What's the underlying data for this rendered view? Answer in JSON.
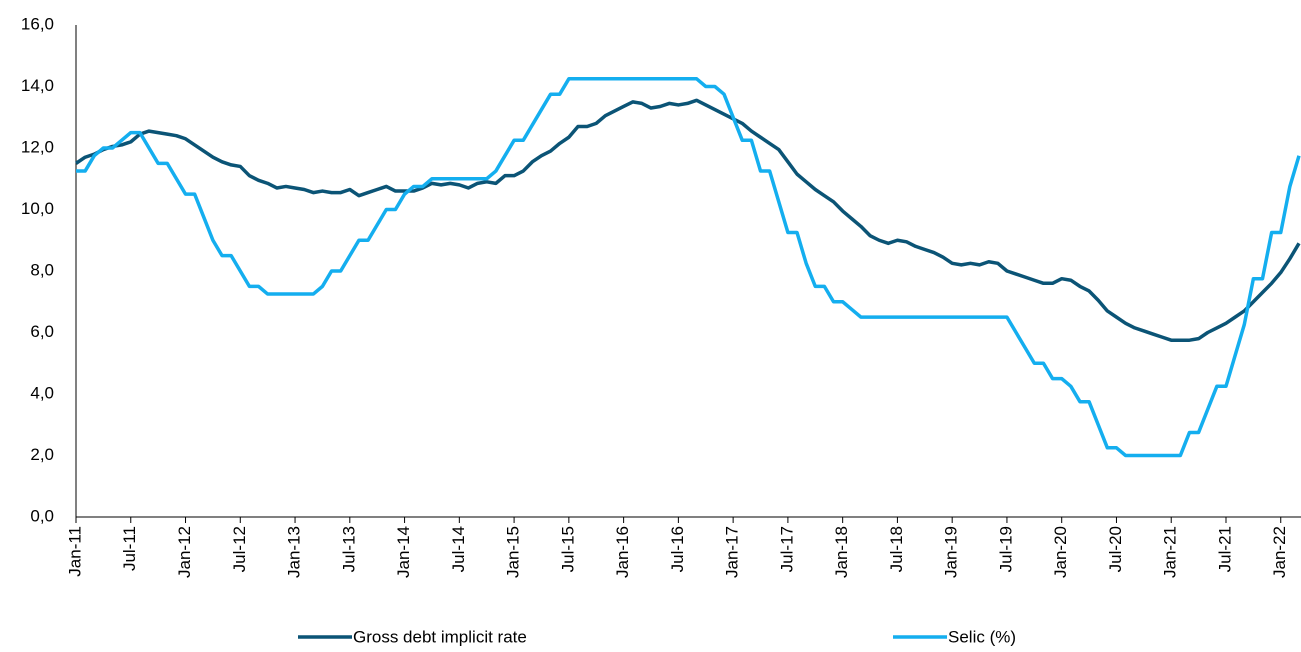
{
  "chart_data": {
    "type": "line",
    "categories": [
      "Jan-11",
      null,
      null,
      null,
      null,
      null,
      "Jul-11",
      null,
      null,
      null,
      null,
      null,
      "Jan-12",
      null,
      null,
      null,
      null,
      null,
      "Jul-12",
      null,
      null,
      null,
      null,
      null,
      "Jan-13",
      null,
      null,
      null,
      null,
      null,
      "Jul-13",
      null,
      null,
      null,
      null,
      null,
      "Jan-14",
      null,
      null,
      null,
      null,
      null,
      "Jul-14",
      null,
      null,
      null,
      null,
      null,
      "Jan-15",
      null,
      null,
      null,
      null,
      null,
      "Jul-15",
      null,
      null,
      null,
      null,
      null,
      "Jan-16",
      null,
      null,
      null,
      null,
      null,
      "Jul-16",
      null,
      null,
      null,
      null,
      null,
      "Jan-17",
      null,
      null,
      null,
      null,
      null,
      "Jul-17",
      null,
      null,
      null,
      null,
      null,
      "Jan-18",
      null,
      null,
      null,
      null,
      null,
      "Jul-18",
      null,
      null,
      null,
      null,
      null,
      "Jan-19",
      null,
      null,
      null,
      null,
      null,
      "Jul-19",
      null,
      null,
      null,
      null,
      null,
      "Jan-20",
      null,
      null,
      null,
      null,
      null,
      "Jul-20",
      null,
      null,
      null,
      null,
      null,
      "Jan-21",
      null,
      null,
      null,
      null,
      null,
      "Jul-21",
      null,
      null,
      null,
      null,
      null,
      "Jan-22",
      null,
      null
    ],
    "series": [
      {
        "name": "Gross debt implicit rate",
        "color": "#0b5476",
        "values": [
          11.5,
          11.7,
          11.8,
          11.95,
          12.05,
          12.1,
          12.2,
          12.45,
          12.55,
          12.5,
          12.45,
          12.4,
          12.3,
          12.1,
          11.9,
          11.7,
          11.55,
          11.45,
          11.4,
          11.1,
          10.95,
          10.85,
          10.7,
          10.75,
          10.7,
          10.65,
          10.55,
          10.6,
          10.55,
          10.55,
          10.65,
          10.45,
          10.55,
          10.65,
          10.75,
          10.6,
          10.6,
          10.6,
          10.7,
          10.85,
          10.8,
          10.85,
          10.8,
          10.7,
          10.85,
          10.9,
          10.85,
          11.1,
          11.1,
          11.25,
          11.55,
          11.75,
          11.9,
          12.15,
          12.35,
          12.7,
          12.7,
          12.8,
          13.05,
          13.2,
          13.35,
          13.5,
          13.45,
          13.3,
          13.35,
          13.45,
          13.4,
          13.45,
          13.55,
          13.4,
          13.25,
          13.1,
          12.95,
          12.8,
          12.55,
          12.35,
          12.15,
          11.95,
          11.55,
          11.15,
          10.9,
          10.65,
          10.45,
          10.25,
          9.95,
          9.7,
          9.45,
          9.15,
          9.0,
          8.9,
          9.0,
          8.95,
          8.8,
          8.7,
          8.6,
          8.45,
          8.25,
          8.2,
          8.25,
          8.2,
          8.3,
          8.25,
          8.0,
          7.9,
          7.8,
          7.7,
          7.6,
          7.6,
          7.75,
          7.7,
          7.5,
          7.35,
          7.05,
          6.7,
          6.5,
          6.3,
          6.15,
          6.05,
          5.95,
          5.85,
          5.75,
          5.75,
          5.75,
          5.8,
          6.0,
          6.15,
          6.3,
          6.5,
          6.7,
          7.0,
          7.3,
          7.6,
          7.95,
          8.4,
          8.9
        ]
      },
      {
        "name": "Selic (%)",
        "color": "#14aeef",
        "values": [
          11.25,
          11.25,
          11.75,
          12,
          12,
          12.25,
          12.5,
          12.5,
          12,
          11.5,
          11.5,
          11,
          10.5,
          10.5,
          9.75,
          9,
          8.5,
          8.5,
          8,
          7.5,
          7.5,
          7.25,
          7.25,
          7.25,
          7.25,
          7.25,
          7.25,
          7.5,
          8,
          8,
          8.5,
          9,
          9,
          9.5,
          10,
          10,
          10.5,
          10.75,
          10.75,
          11,
          11,
          11,
          11,
          11,
          11,
          11,
          11.25,
          11.75,
          12.25,
          12.25,
          12.75,
          13.25,
          13.75,
          13.75,
          14.25,
          14.25,
          14.25,
          14.25,
          14.25,
          14.25,
          14.25,
          14.25,
          14.25,
          14.25,
          14.25,
          14.25,
          14.25,
          14.25,
          14.25,
          14,
          14,
          13.75,
          13,
          12.25,
          12.25,
          11.25,
          11.25,
          10.25,
          9.25,
          9.25,
          8.25,
          7.5,
          7.5,
          7,
          7,
          6.75,
          6.5,
          6.5,
          6.5,
          6.5,
          6.5,
          6.5,
          6.5,
          6.5,
          6.5,
          6.5,
          6.5,
          6.5,
          6.5,
          6.5,
          6.5,
          6.5,
          6.5,
          6,
          5.5,
          5,
          5,
          4.5,
          4.5,
          4.25,
          3.75,
          3.75,
          3,
          2.25,
          2.25,
          2,
          2,
          2,
          2,
          2,
          2,
          2,
          2.75,
          2.75,
          3.5,
          4.25,
          4.25,
          5.25,
          6.25,
          7.75,
          7.75,
          9.25,
          9.25,
          10.75,
          11.75
        ]
      }
    ],
    "ylim": [
      0,
      16
    ],
    "yticks": [
      {
        "value": 0,
        "label": "0,0"
      },
      {
        "value": 2,
        "label": "2,0"
      },
      {
        "value": 4,
        "label": "4,0"
      },
      {
        "value": 6,
        "label": "6,0"
      },
      {
        "value": 8,
        "label": "8,0"
      },
      {
        "value": 10,
        "label": "10,0"
      },
      {
        "value": 12,
        "label": "12,0"
      },
      {
        "value": 14,
        "label": "14,0"
      },
      {
        "value": 16,
        "label": "16,0"
      }
    ],
    "grid": false,
    "legend": "bottom"
  }
}
